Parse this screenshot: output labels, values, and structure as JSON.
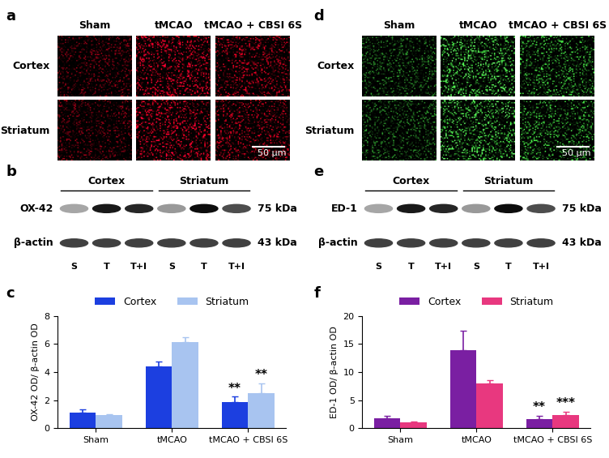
{
  "panels": [
    {
      "label": "a",
      "type": "image",
      "columns": [
        "Sham",
        "tMCAO",
        "tMCAO + CBSI 6S"
      ],
      "rows": [
        "Cortex",
        "Striatum"
      ],
      "scale_bar": "50 μm",
      "color": "red"
    },
    {
      "label": "b",
      "type": "blot",
      "groups": [
        "Cortex",
        "Striatum"
      ],
      "lanes": [
        "S",
        "T",
        "T+I",
        "S",
        "T",
        "T+I"
      ],
      "bands": [
        {
          "name": "OX-42",
          "size": "75 kDa"
        },
        {
          "name": "β-actin",
          "size": "43 kDa"
        }
      ]
    },
    {
      "label": "d",
      "type": "image",
      "columns": [
        "Sham",
        "tMCAO",
        "tMCAO + CBSI 6S"
      ],
      "rows": [
        "Cortex",
        "Striatum"
      ],
      "scale_bar": "50 μm",
      "color": "green"
    },
    {
      "label": "e",
      "type": "blot",
      "groups": [
        "Cortex",
        "Striatum"
      ],
      "lanes": [
        "S",
        "T",
        "T+I",
        "S",
        "T",
        "T+I"
      ],
      "bands": [
        {
          "name": "ED-1",
          "size": "75 kDa"
        },
        {
          "name": "β-actin",
          "size": "43 kDa"
        }
      ]
    }
  ],
  "chart_data": [
    {
      "type": "bar",
      "panel_label": "c",
      "ylabel": "OX-42 OD/ β-actin OD",
      "categories": [
        "Sham",
        "tMCAO",
        "tMCAO + CBSI 6S"
      ],
      "series": [
        {
          "name": "Cortex",
          "color": "#1c3fe0",
          "values": [
            1.1,
            4.4,
            1.85
          ],
          "errors": [
            0.25,
            0.35,
            0.4
          ],
          "annotations": [
            null,
            null,
            "**"
          ]
        },
        {
          "name": "Striatum",
          "color": "#a8c4f0",
          "values": [
            0.95,
            6.15,
            2.5
          ],
          "errors": [
            0.05,
            0.35,
            0.7
          ],
          "annotations": [
            null,
            null,
            "**"
          ]
        }
      ],
      "ylim": [
        0,
        8
      ],
      "yticks": [
        0,
        2,
        4,
        6,
        8
      ],
      "legend": "lower center"
    },
    {
      "type": "bar",
      "panel_label": "f",
      "ylabel": "ED-1 OD/ β-actin OD",
      "categories": [
        "Sham",
        "tMCAO",
        "tMCAO + CBSI 6S"
      ],
      "series": [
        {
          "name": "Cortex",
          "color": "#7a1fa2",
          "values": [
            1.8,
            13.9,
            1.6
          ],
          "errors": [
            0.4,
            3.5,
            0.6
          ],
          "annotations": [
            null,
            null,
            "**"
          ]
        },
        {
          "name": "Striatum",
          "color": "#e8387f",
          "values": [
            1.1,
            8.0,
            2.3
          ],
          "errors": [
            0.1,
            0.6,
            0.6
          ],
          "annotations": [
            null,
            null,
            "***"
          ]
        }
      ],
      "ylim": [
        0,
        20
      ],
      "yticks": [
        0,
        5,
        10,
        15,
        20
      ],
      "legend": "lower center"
    }
  ]
}
